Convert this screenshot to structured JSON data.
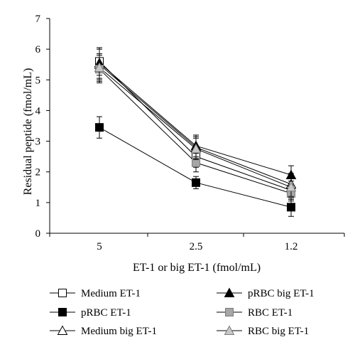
{
  "chart_data": {
    "type": "line",
    "title": "",
    "xlabel": "ET-1 or big ET-1 (fmol/mL)",
    "ylabel": "Residual peptide (fmol/mL)",
    "categories": [
      "5",
      "2.5",
      "1.2"
    ],
    "ylim": [
      0,
      7
    ],
    "yticks": [
      0,
      1,
      2,
      3,
      4,
      5,
      6,
      7
    ],
    "grid": false,
    "legend_position": "bottom",
    "series": [
      {
        "name": "Medium ET-1",
        "marker": "square-open",
        "color": "#000000",
        "values": [
          5.6,
          2.5,
          1.4
        ],
        "errors": [
          0.45,
          0.35,
          0.3
        ]
      },
      {
        "name": "pRBC ET-1",
        "marker": "square-filled",
        "color": "#000000",
        "values": [
          3.45,
          1.65,
          0.85
        ],
        "errors": [
          0.35,
          0.2,
          0.3
        ]
      },
      {
        "name": "Medium big ET-1",
        "marker": "triangle-open",
        "color": "#000000",
        "values": [
          5.5,
          2.8,
          1.6
        ],
        "errors": [
          0.5,
          0.35,
          0.35
        ]
      },
      {
        "name": "pRBC big ET-1",
        "marker": "triangle-filled",
        "color": "#000000",
        "values": [
          5.55,
          2.85,
          1.9
        ],
        "errors": [
          0.5,
          0.35,
          0.3
        ]
      },
      {
        "name": "RBC ET-1",
        "marker": "square-gray",
        "color": "#a6a6a6",
        "values": [
          5.35,
          2.3,
          1.3
        ],
        "errors": [
          0.45,
          0.3,
          0.25
        ]
      },
      {
        "name": "RBC big ET-1",
        "marker": "triangle-gray",
        "color": "#c8c8c8",
        "values": [
          5.4,
          2.75,
          1.5
        ],
        "errors": [
          0.45,
          0.35,
          0.3
        ]
      }
    ]
  }
}
